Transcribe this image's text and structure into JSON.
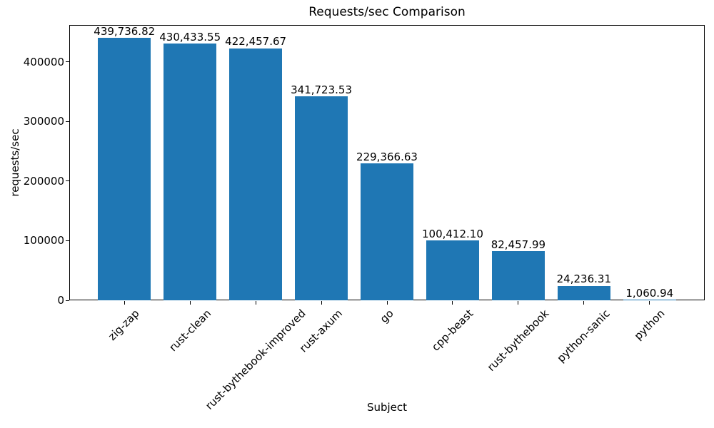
{
  "chart_data": {
    "type": "bar",
    "title": "Requests/sec Comparison",
    "xlabel": "Subject",
    "ylabel": "requests/sec",
    "categories": [
      "zig-zap",
      "rust-clean",
      "rust-bythebook-improved",
      "rust-axum",
      "go",
      "cpp-beast",
      "rust-bythebook",
      "python-sanic",
      "python"
    ],
    "values": [
      439736.82,
      430433.55,
      422457.67,
      341723.53,
      229366.63,
      100412.1,
      82457.99,
      24236.31,
      1060.94
    ],
    "value_labels": [
      "439,736.82",
      "430,433.55",
      "422,457.67",
      "341,723.53",
      "229,366.63",
      "100,412.10",
      "82,457.99",
      "24,236.31",
      "1,060.94"
    ],
    "ytick_values": [
      0,
      100000,
      200000,
      300000,
      400000
    ],
    "ytick_labels": [
      "0",
      "100000",
      "200000",
      "300000",
      "400000"
    ],
    "ylim": [
      0,
      461724
    ],
    "bar_color": "#1f77b4",
    "text_color": "#000000",
    "background_color": "#ffffff",
    "grid": false,
    "legend": "none",
    "xtick_rotation_deg": 45,
    "bar_width_fraction": 0.8
  }
}
